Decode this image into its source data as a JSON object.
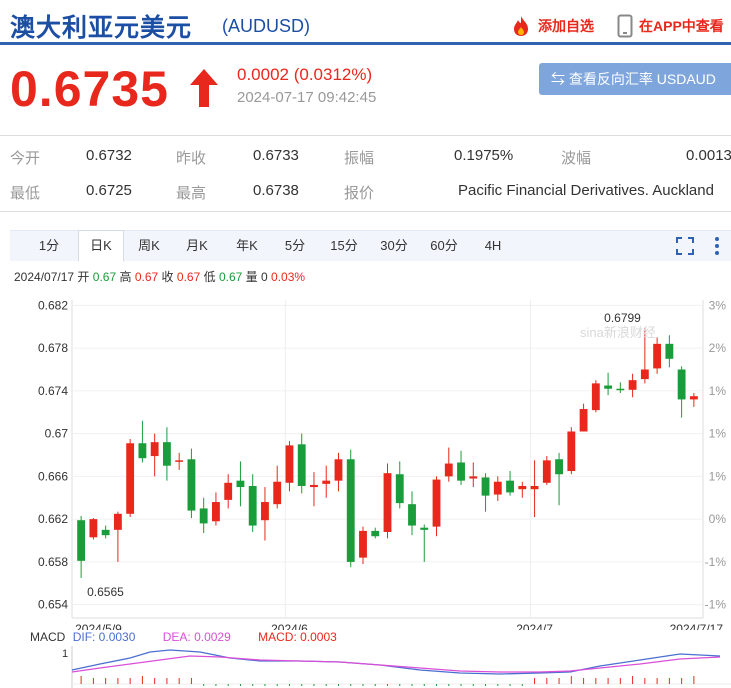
{
  "header": {
    "title": "澳大利亚元美元",
    "code": "(AUDUSD)",
    "add_watchlist": "添加自选",
    "view_in_app": "在APP中查看"
  },
  "quote": {
    "price": "0.6735",
    "arrow": "↑",
    "change": "0.0002 (0.0312%)",
    "time": "2024-07-17 09:42:45",
    "reverse_button": "⇆ 查看反向汇率 USDAUD"
  },
  "stats": {
    "open_label": "今开",
    "open": "0.6732",
    "prev_close_label": "昨收",
    "prev_close": "0.6733",
    "amplitude_label": "振幅",
    "amplitude": "0.1975%",
    "wave_label": "波幅",
    "wave": "0.0013",
    "low_label": "最低",
    "low": "0.6725",
    "high_label": "最高",
    "high": "0.6738",
    "quote_label": "报价",
    "quote_source": "Pacific Financial Derivatives. Auckland"
  },
  "tabs": [
    "1分",
    "日K",
    "周K",
    "月K",
    "年K",
    "5分",
    "15分",
    "30分",
    "60分",
    "4H"
  ],
  "active_tab": "日K",
  "ohlc_line": {
    "date": "2024/07/17",
    "open_label": "开",
    "open": "0.67",
    "high_label": "高",
    "high": "0.67",
    "close_label": "收",
    "close": "0.67",
    "low_label": "低",
    "low": "0.67",
    "vol_label": "量",
    "vol": "0",
    "pct": "0.03%"
  },
  "macd": {
    "label": "MACD",
    "dif": "DIF: 0.0030",
    "dea": "DEA: 0.0029",
    "macd": "MACD: 0.0003",
    "axis_top": "1"
  },
  "colors": {
    "up": "#e8281c",
    "down": "#1a9c3a",
    "accent": "#2f62b0"
  },
  "icons": {
    "fire": "fire-icon",
    "phone": "phone-icon",
    "fullscreen": "fullscreen-icon",
    "more": "more-vertical-icon",
    "swap": "swap-icon"
  },
  "watermark": "sina新浪财经",
  "chart_data": {
    "type": "candlestick",
    "y_ticks": [
      "0.682",
      "0.678",
      "0.674",
      "0.67",
      "0.666",
      "0.662",
      "0.658",
      "0.654"
    ],
    "y_right_ticks": [
      "3%",
      "2%",
      "1%",
      "1%",
      "1%",
      "0%",
      "-1%",
      "-1%"
    ],
    "x_labels": [
      "2024/5/9",
      "2024/6",
      "2024/7",
      "2024/7/17"
    ],
    "ylim": [
      0.6535,
      0.6825
    ],
    "annotations": {
      "max": "0.6799",
      "min": "0.6565"
    },
    "candles": [
      [
        0.6619,
        0.6581,
        0.6623,
        0.6565
      ],
      [
        0.6603,
        0.662,
        0.6621,
        0.6601
      ],
      [
        0.661,
        0.6605,
        0.6614,
        0.6602
      ],
      [
        0.661,
        0.6625,
        0.6627,
        0.658
      ],
      [
        0.6625,
        0.6691,
        0.6695,
        0.6622
      ],
      [
        0.6691,
        0.6677,
        0.6712,
        0.6673
      ],
      [
        0.6679,
        0.6692,
        0.67,
        0.666
      ],
      [
        0.6692,
        0.667,
        0.6706,
        0.6656
      ],
      [
        0.6674,
        0.6675,
        0.6682,
        0.6666
      ],
      [
        0.6676,
        0.6628,
        0.6686,
        0.6621
      ],
      [
        0.663,
        0.6616,
        0.664,
        0.6607
      ],
      [
        0.6618,
        0.6636,
        0.6645,
        0.6614
      ],
      [
        0.6638,
        0.6654,
        0.6662,
        0.663
      ],
      [
        0.6656,
        0.665,
        0.6674,
        0.6632
      ],
      [
        0.6651,
        0.6614,
        0.6662,
        0.6608
      ],
      [
        0.6619,
        0.6636,
        0.665,
        0.66
      ],
      [
        0.6634,
        0.6655,
        0.667,
        0.663
      ],
      [
        0.6654,
        0.6689,
        0.6693,
        0.6646
      ],
      [
        0.669,
        0.6651,
        0.67,
        0.6644
      ],
      [
        0.665,
        0.6652,
        0.6664,
        0.6632
      ],
      [
        0.6653,
        0.6656,
        0.667,
        0.664
      ],
      [
        0.6656,
        0.6676,
        0.6682,
        0.6646
      ],
      [
        0.6676,
        0.658,
        0.6685,
        0.6575
      ],
      [
        0.6584,
        0.6609,
        0.6613,
        0.6578
      ],
      [
        0.6609,
        0.6604,
        0.6612,
        0.6602
      ],
      [
        0.6608,
        0.6663,
        0.6672,
        0.6602
      ],
      [
        0.6662,
        0.6635,
        0.6674,
        0.663
      ],
      [
        0.6634,
        0.6614,
        0.6646,
        0.6605
      ],
      [
        0.6612,
        0.661,
        0.6615,
        0.658
      ],
      [
        0.6613,
        0.6657,
        0.666,
        0.6604
      ],
      [
        0.666,
        0.6672,
        0.6687,
        0.6655
      ],
      [
        0.6673,
        0.6656,
        0.6684,
        0.6652
      ],
      [
        0.6658,
        0.666,
        0.6673,
        0.665
      ],
      [
        0.6659,
        0.6642,
        0.6663,
        0.6627
      ],
      [
        0.6643,
        0.6655,
        0.666,
        0.6637
      ],
      [
        0.6656,
        0.6645,
        0.6665,
        0.6642
      ],
      [
        0.6648,
        0.6651,
        0.6655,
        0.664
      ],
      [
        0.6648,
        0.6651,
        0.6675,
        0.6622
      ],
      [
        0.6654,
        0.6675,
        0.6679,
        0.6652
      ],
      [
        0.6676,
        0.6662,
        0.6682,
        0.6633
      ],
      [
        0.6665,
        0.6702,
        0.6706,
        0.6662
      ],
      [
        0.6702,
        0.6723,
        0.6728,
        0.6702
      ],
      [
        0.6722,
        0.6747,
        0.675,
        0.672
      ],
      [
        0.6745,
        0.6742,
        0.6757,
        0.6736
      ],
      [
        0.6742,
        0.6741,
        0.6748,
        0.6738
      ],
      [
        0.6741,
        0.675,
        0.6756,
        0.6734
      ],
      [
        0.6751,
        0.676,
        0.6799,
        0.6747
      ],
      [
        0.6761,
        0.6784,
        0.679,
        0.6756
      ],
      [
        0.6784,
        0.677,
        0.6792,
        0.6762
      ],
      [
        0.676,
        0.6732,
        0.6763,
        0.6715
      ],
      [
        0.6732,
        0.6735,
        0.6738,
        0.6725
      ]
    ]
  }
}
